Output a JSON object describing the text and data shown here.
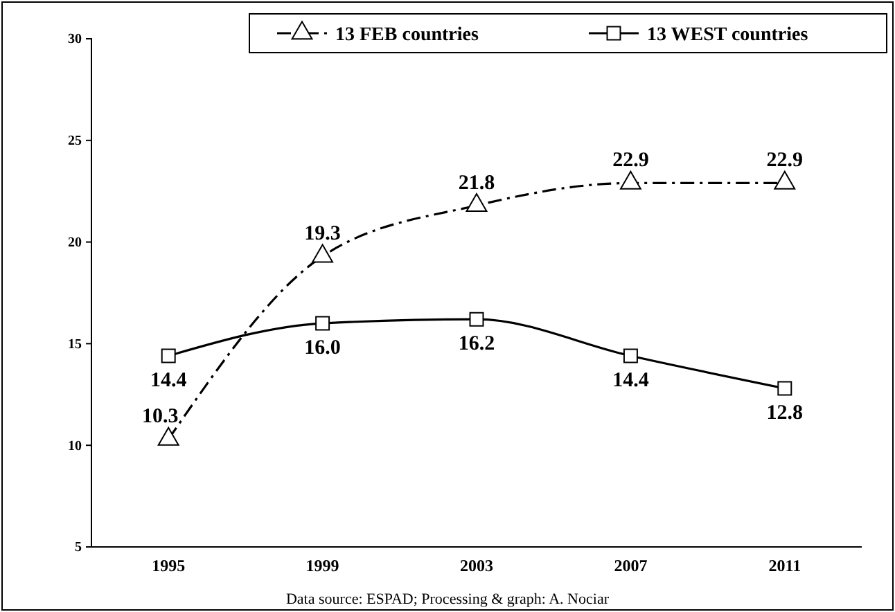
{
  "chart_data": {
    "type": "line",
    "categories": [
      "1995",
      "1999",
      "2003",
      "2007",
      "2011"
    ],
    "series": [
      {
        "name": "13 FEB countries",
        "color": "#000000",
        "values": [
          10.3,
          19.3,
          21.8,
          22.9,
          22.9
        ],
        "value_labels": [
          "10.3",
          "19.3",
          "21.8",
          "22.9",
          "22.9"
        ],
        "marker": "triangle",
        "line_style": "dashed"
      },
      {
        "name": "13 WEST countries",
        "color": "#000000",
        "values": [
          14.4,
          16.0,
          16.2,
          14.4,
          12.8
        ],
        "value_labels": [
          "14.4",
          "16.0",
          "16.2",
          "14.4",
          "12.8"
        ],
        "marker": "square",
        "line_style": "solid"
      }
    ],
    "ylim": [
      5,
      30
    ],
    "yticks": [
      5,
      10,
      15,
      20,
      25,
      30
    ],
    "grid": false,
    "legend": "top",
    "annotations": [
      "Data source: ESPAD; Processing & graph: A. Nociar"
    ]
  }
}
